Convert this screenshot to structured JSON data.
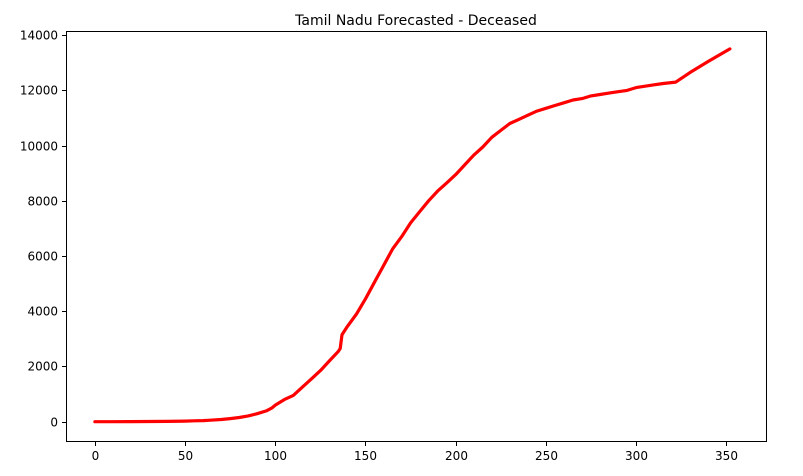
{
  "chart_data": {
    "type": "line",
    "title": "Tamil Nadu Forecasted - Deceased",
    "xlabel": "",
    "ylabel": "",
    "xlim": [
      -16,
      372
    ],
    "ylim": [
      -700,
      14150
    ],
    "xticks": [
      0,
      50,
      100,
      150,
      200,
      250,
      300,
      350
    ],
    "yticks": [
      0,
      2000,
      4000,
      6000,
      8000,
      10000,
      12000,
      14000
    ],
    "grid": false,
    "series": [
      {
        "color": "#ff0000",
        "x": [
          0,
          10,
          20,
          30,
          40,
          50,
          55,
          60,
          63,
          70,
          75,
          80,
          85,
          90,
          95,
          98,
          100,
          105,
          110,
          115,
          120,
          125,
          130,
          135,
          136,
          137,
          140,
          145,
          150,
          155,
          160,
          165,
          170,
          175,
          180,
          185,
          190,
          195,
          200,
          205,
          210,
          215,
          220,
          225,
          230,
          235,
          240,
          245,
          250,
          255,
          260,
          265,
          270,
          275,
          280,
          285,
          290,
          295,
          300,
          305,
          310,
          315,
          322,
          330,
          340,
          352
        ],
        "y": [
          0,
          0,
          3,
          5,
          10,
          20,
          30,
          40,
          50,
          80,
          110,
          150,
          210,
          290,
          390,
          490,
          600,
          800,
          950,
          1250,
          1550,
          1850,
          2200,
          2550,
          2650,
          3150,
          3450,
          3900,
          4450,
          5050,
          5650,
          6250,
          6700,
          7200,
          7600,
          8000,
          8350,
          8650,
          8950,
          9300,
          9650,
          9950,
          10300,
          10550,
          10800,
          10950,
          11100,
          11250,
          11350,
          11450,
          11550,
          11650,
          11700,
          11800,
          11850,
          11900,
          11950,
          12000,
          12100,
          12150,
          12200,
          12250,
          12300,
          12650,
          13050,
          13500
        ]
      }
    ]
  }
}
